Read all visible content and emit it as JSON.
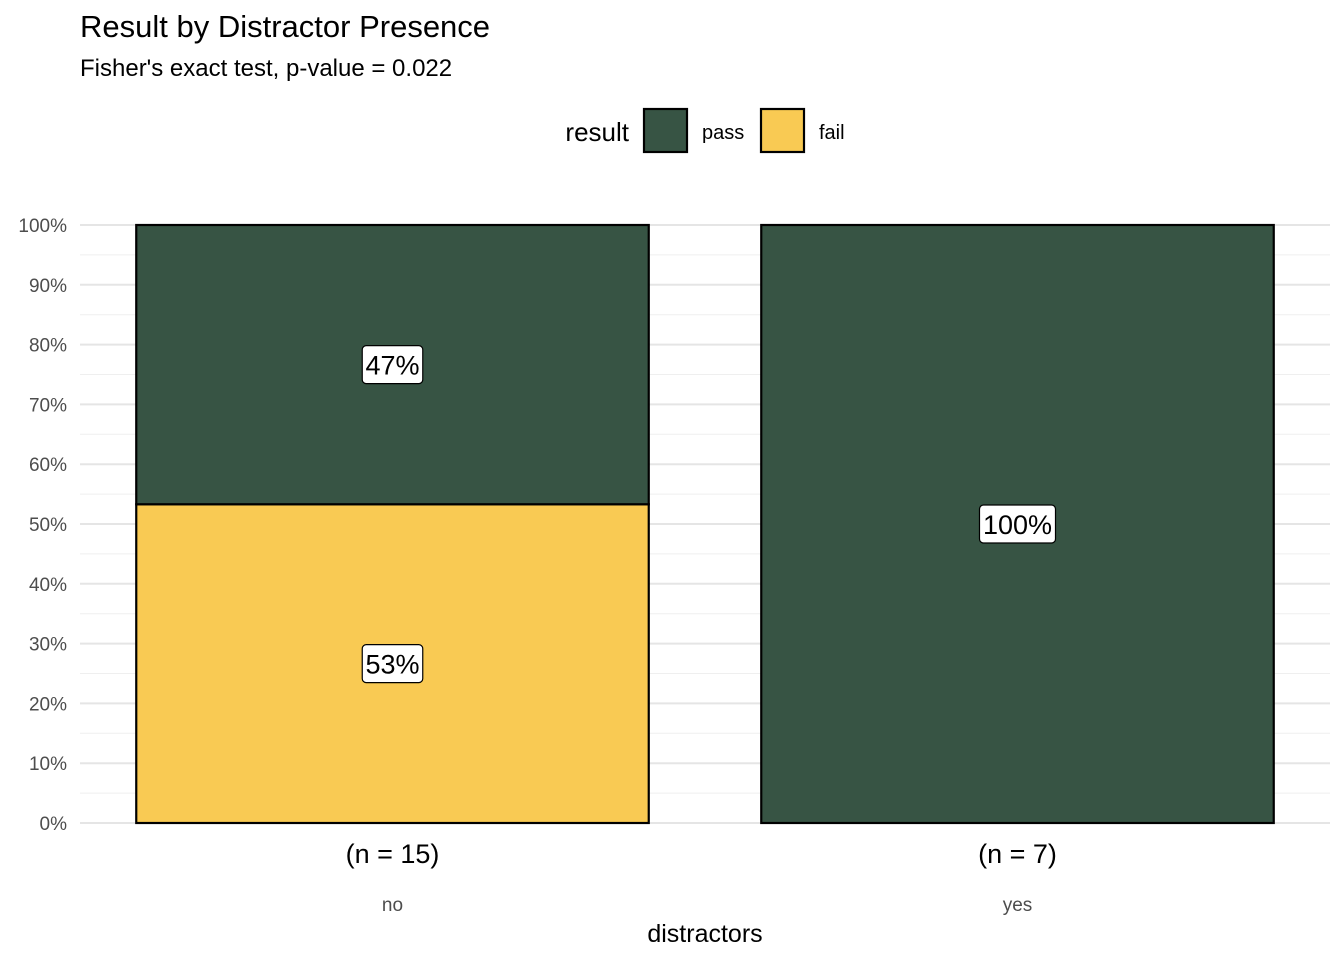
{
  "chart_data": {
    "type": "bar",
    "stacked": true,
    "normalized": true,
    "title": "Result by Distractor Presence",
    "subtitle": "Fisher's exact test, p-value = 0.022",
    "xlabel": "distractors",
    "ylabel": "",
    "categories": [
      "no",
      "yes"
    ],
    "category_counts": [
      "(n = 15)",
      "(n = 7)"
    ],
    "series": [
      {
        "name": "fail",
        "color": "#F9CA53",
        "values": [
          53.3,
          0
        ],
        "labels": [
          "53%",
          ""
        ]
      },
      {
        "name": "pass",
        "color": "#375444",
        "values": [
          46.7,
          100
        ],
        "labels": [
          "47%",
          "100%"
        ]
      }
    ],
    "ylim": [
      0,
      100
    ],
    "yticks": [
      0,
      10,
      20,
      30,
      40,
      50,
      60,
      70,
      80,
      90,
      100
    ],
    "ytick_labels": [
      "0%",
      "10%",
      "20%",
      "30%",
      "40%",
      "50%",
      "60%",
      "70%",
      "80%",
      "90%",
      "100%"
    ],
    "grid": true,
    "legend": {
      "title": "result",
      "position": "top",
      "entries": [
        {
          "label": "pass",
          "color": "#375444"
        },
        {
          "label": "fail",
          "color": "#F9CA53"
        }
      ]
    }
  }
}
